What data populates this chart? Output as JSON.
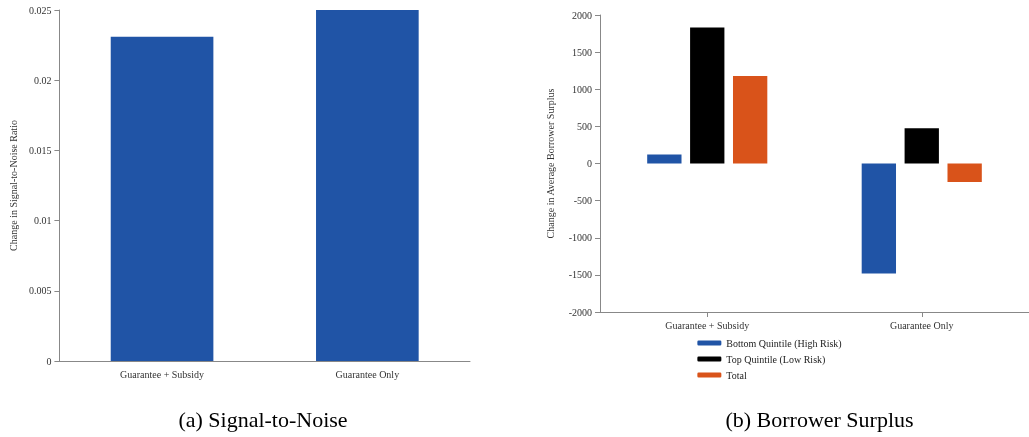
{
  "chart_data": [
    {
      "type": "bar",
      "title": "(a) Signal-to-Noise",
      "ylabel": "Change in Signal-to-Noise Ratio",
      "categories": [
        "Guarantee + Subsidy",
        "Guarantee Only"
      ],
      "values": [
        0.0231,
        0.025
      ],
      "color": "#2054a6",
      "ylim": [
        0,
        0.025
      ],
      "yticks": [
        0,
        0.005,
        0.01,
        0.015,
        0.02,
        0.025
      ],
      "grid": false,
      "legend": false
    },
    {
      "type": "bar",
      "title": "(b) Borrower Surplus",
      "ylabel": "Change in Average Borrower Surplus",
      "categories": [
        "Guarantee + Subsidy",
        "Guarantee Only"
      ],
      "series": [
        {
          "name": "Bottom Quintile (High Risk)",
          "color": "#2054a6",
          "values": [
            120,
            -1480
          ]
        },
        {
          "name": "Top Quintile (Low Risk)",
          "color": "#000000",
          "values": [
            1830,
            475
          ]
        },
        {
          "name": "Total",
          "color": "#d9531a",
          "values": [
            1180,
            -250
          ]
        }
      ],
      "ylim": [
        -2000,
        2000
      ],
      "yticks": [
        -2000,
        -1500,
        -1000,
        -500,
        0,
        500,
        1000,
        1500,
        2000
      ],
      "grid": false,
      "legend": "bottom"
    }
  ]
}
